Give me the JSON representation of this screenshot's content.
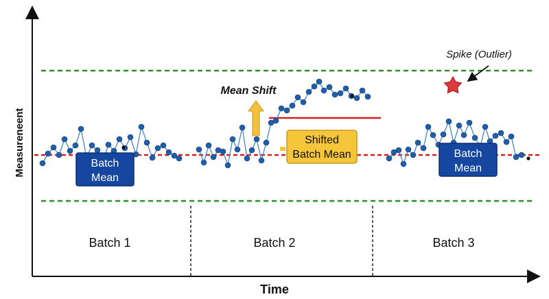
{
  "axes": {
    "y_label": "Measureneent",
    "x_label": "Time"
  },
  "annotations": {
    "mean_shift": "Mean Shift",
    "spike": "Spike (Outlier)",
    "batch_mean_1": [
      "Batch",
      "Mean"
    ],
    "shifted_batch_mean": [
      "Shifted",
      "Batch Mean"
    ],
    "batch_mean_3": [
      "Batch",
      "Mean"
    ]
  },
  "batches": [
    "Batch 1",
    "Batch 2",
    "Batch 3"
  ],
  "colors": {
    "points": "#1f5ea8",
    "line": "#4a84c4",
    "control_limit": "#2e8b2e",
    "baseline_mean": "#d62020",
    "shifted_mean": "#d62020",
    "mean_box": "#1547a0",
    "shifted_box": "#f5c53a",
    "arrow": "#f2c23c",
    "star": "#e0393e"
  },
  "icons": {
    "up_arrow": "up-arrow-icon",
    "star": "star-icon"
  }
}
